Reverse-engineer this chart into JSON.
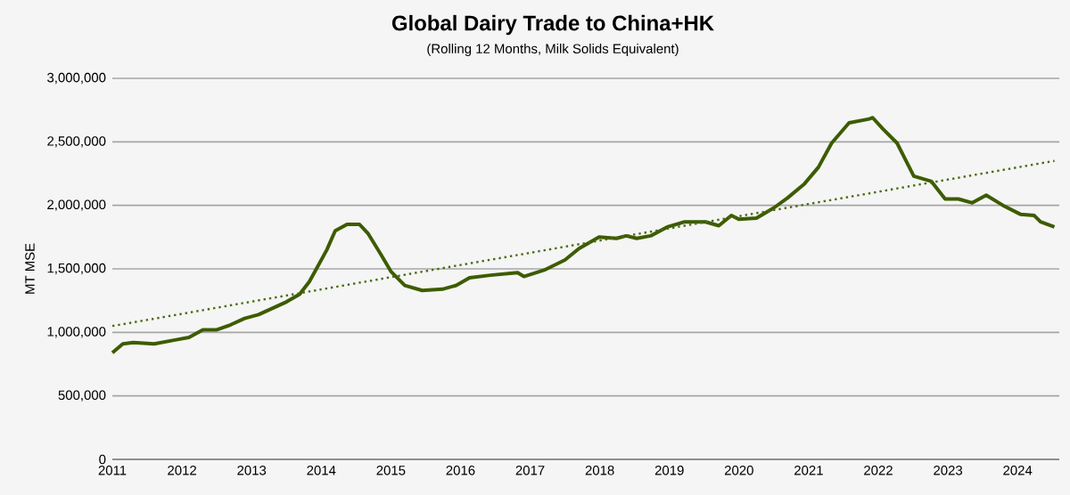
{
  "chart_data": {
    "type": "line",
    "title": "Global Dairy Trade to China+HK",
    "subtitle": "(Rolling 12 Months, Milk Solids Equivalent)",
    "ylabel": "MT MSE",
    "xlim": [
      2011,
      2024.6
    ],
    "xticks": [
      2011,
      2012,
      2013,
      2014,
      2015,
      2016,
      2017,
      2018,
      2019,
      2020,
      2021,
      2022,
      2023,
      2024
    ],
    "ylim": [
      0,
      3000000
    ],
    "yticks": [
      {
        "value": 0,
        "label": "0"
      },
      {
        "value": 500000,
        "label": "500,000"
      },
      {
        "value": 1000000,
        "label": "1,000,000"
      },
      {
        "value": 1500000,
        "label": "1,500,000"
      },
      {
        "value": 2000000,
        "label": "2,000,000"
      },
      {
        "value": 2500000,
        "label": "2,500,000"
      },
      {
        "value": 3000000,
        "label": "3,000,000"
      }
    ],
    "grid": "y",
    "series": [
      {
        "color": "#3d5c00",
        "line_style": "solid",
        "x": [
          2011.0,
          2011.15,
          2011.3,
          2011.6,
          2011.9,
          2012.1,
          2012.3,
          2012.5,
          2012.7,
          2012.9,
          2013.1,
          2013.3,
          2013.5,
          2013.69,
          2013.83,
          2014.08,
          2014.2,
          2014.37,
          2014.55,
          2014.67,
          2014.86,
          2015.0,
          2015.2,
          2015.45,
          2015.74,
          2015.94,
          2016.13,
          2016.43,
          2016.82,
          2016.91,
          2017.2,
          2017.5,
          2017.7,
          2017.99,
          2018.24,
          2018.38,
          2018.53,
          2018.73,
          2018.97,
          2019.22,
          2019.52,
          2019.71,
          2019.89,
          2020.0,
          2020.25,
          2020.5,
          2020.7,
          2020.94,
          2021.14,
          2021.33,
          2021.58,
          2021.87,
          2021.92,
          2022.07,
          2022.27,
          2022.51,
          2022.76,
          2022.96,
          2023.15,
          2023.35,
          2023.55,
          2023.79,
          2024.04,
          2024.24,
          2024.33,
          2024.53
        ],
        "values": [
          840000,
          910000,
          920000,
          910000,
          940000,
          960000,
          1020000,
          1020000,
          1060000,
          1110000,
          1140000,
          1190000,
          1240000,
          1300000,
          1400000,
          1650000,
          1800000,
          1850000,
          1850000,
          1780000,
          1610000,
          1480000,
          1370000,
          1330000,
          1340000,
          1370000,
          1430000,
          1450000,
          1470000,
          1440000,
          1490000,
          1570000,
          1660000,
          1750000,
          1740000,
          1760000,
          1740000,
          1760000,
          1830000,
          1870000,
          1870000,
          1840000,
          1920000,
          1890000,
          1900000,
          1980000,
          2060000,
          2170000,
          2300000,
          2490000,
          2650000,
          2680000,
          2690000,
          2600000,
          2490000,
          2230000,
          2190000,
          2050000,
          2050000,
          2020000,
          2080000,
          2000000,
          1930000,
          1920000,
          1870000,
          1830000
        ]
      },
      {
        "color": "#4a6b10",
        "line_style": "dotted",
        "x": [
          2011.0,
          2024.53
        ],
        "values": [
          1050000,
          2350000
        ]
      }
    ]
  }
}
